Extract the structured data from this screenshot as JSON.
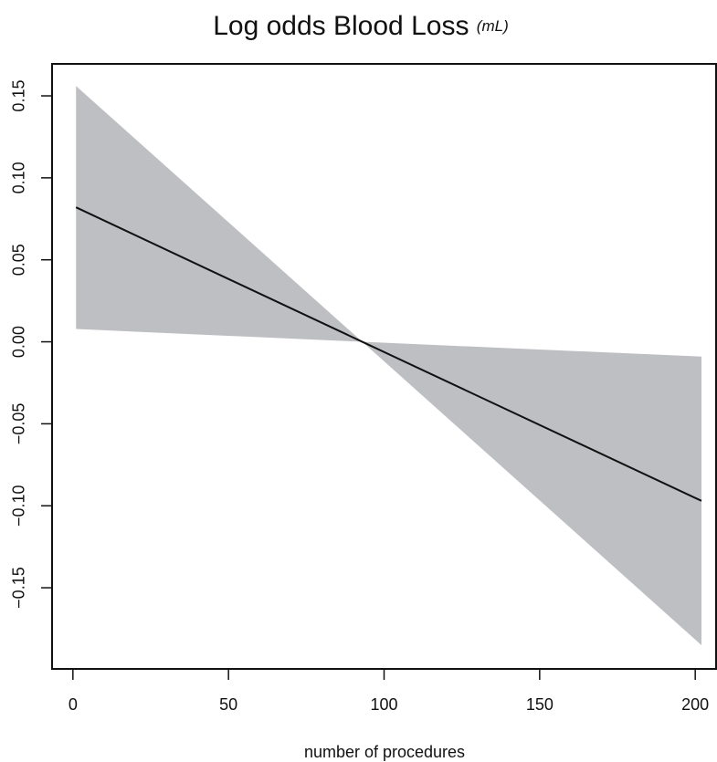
{
  "chart_data": {
    "type": "band-line",
    "title": "Log odds Blood Loss",
    "title_unit": "(mL)",
    "x_label": "number of procedures",
    "x": [
      1,
      93,
      202
    ],
    "series": [
      {
        "color": "#111111",
        "values": [
          0.082,
          0,
          -0.097
        ]
      }
    ],
    "band": {
      "color": "#bebfc3",
      "upper": [
        0.156,
        0,
        -0.009
      ],
      "lower": [
        0.0078,
        0,
        -0.185
      ]
    },
    "xlim": [
      -6.7,
      206.7
    ],
    "ylim": [
      -0.1995,
      0.1695
    ],
    "xticks": [
      0,
      50,
      100,
      150,
      200
    ],
    "yticks": [
      {
        "value": -0.15,
        "label": "−0.15"
      },
      {
        "value": -0.1,
        "label": "−0.10"
      },
      {
        "value": -0.05,
        "label": "−0.05"
      },
      {
        "value": 0,
        "label": "0.00"
      },
      {
        "value": 0.05,
        "label": "0.05"
      },
      {
        "value": 0.1,
        "label": "0.10"
      },
      0.15
    ]
  }
}
